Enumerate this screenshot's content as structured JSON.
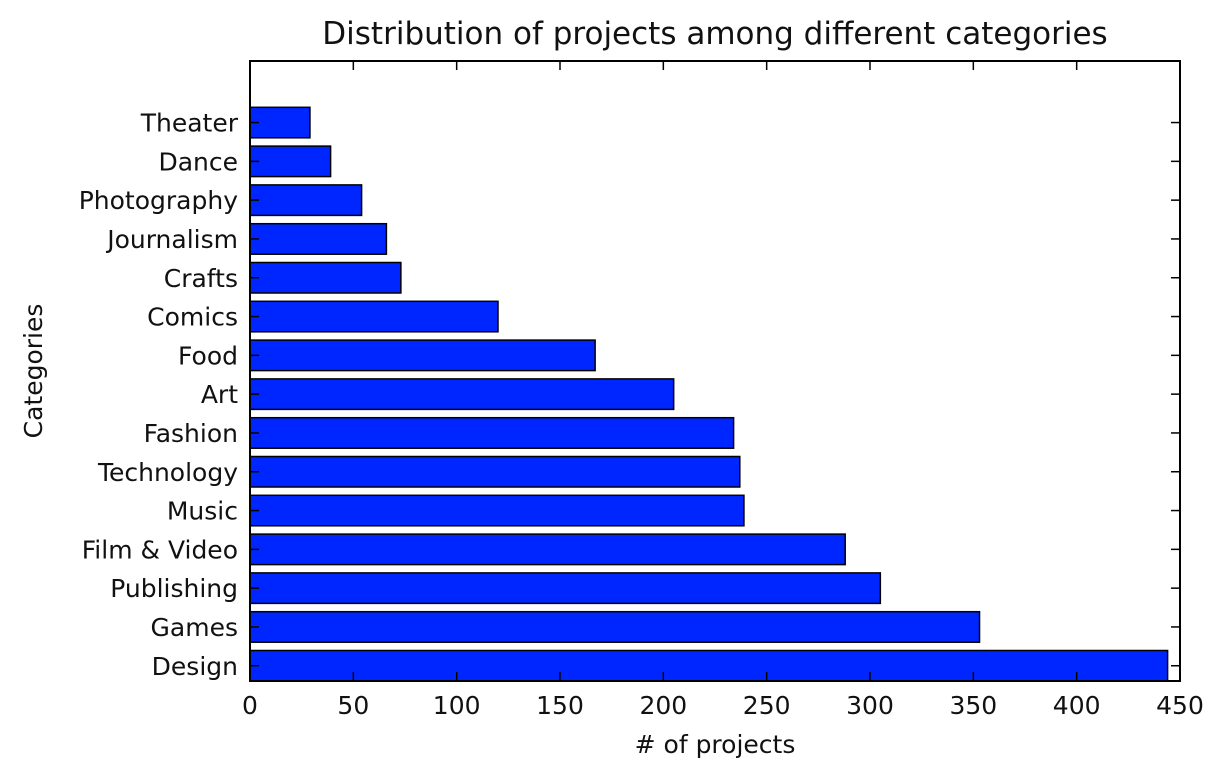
{
  "chart_data": {
    "type": "bar",
    "orientation": "horizontal",
    "title": "Distribution of projects among different categories",
    "xlabel": "# of projects",
    "ylabel": "Categories",
    "xlim": [
      0,
      450
    ],
    "x_ticks": [
      0,
      50,
      100,
      150,
      200,
      250,
      300,
      350,
      400,
      450
    ],
    "grid": false,
    "legend": "none",
    "bar_color": "#0026ff",
    "categories": [
      "Design",
      "Games",
      "Publishing",
      "Film & Video",
      "Music",
      "Technology",
      "Fashion",
      "Art",
      "Food",
      "Comics",
      "Crafts",
      "Journalism",
      "Photography",
      "Dance",
      "Theater"
    ],
    "values": [
      444,
      353,
      305,
      288,
      239,
      237,
      234,
      205,
      167,
      120,
      73,
      66,
      54,
      39,
      29
    ]
  }
}
